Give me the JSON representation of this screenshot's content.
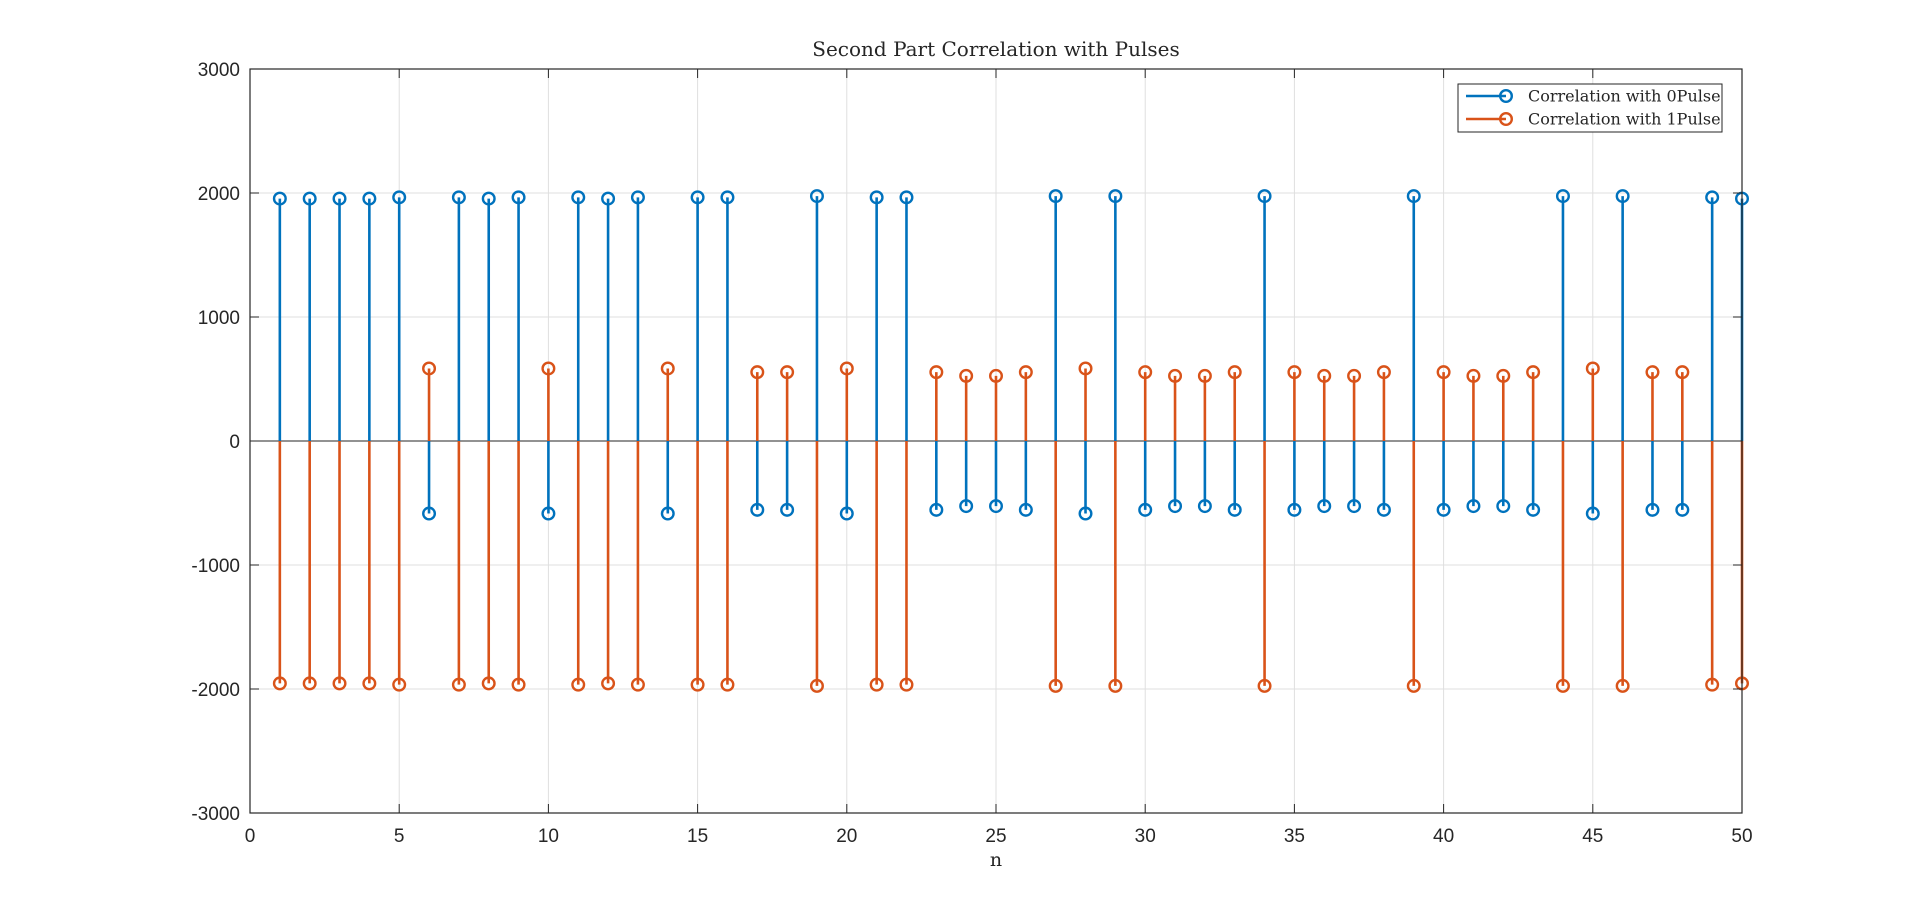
{
  "chart_data": {
    "type": "stem",
    "title": "Second Part Correlation with Pulses",
    "xlabel": "n",
    "ylabel": "",
    "xlim": [
      0,
      50
    ],
    "ylim": [
      -3000,
      3000
    ],
    "x_ticks": [
      0,
      5,
      10,
      15,
      20,
      25,
      30,
      35,
      40,
      45,
      50
    ],
    "y_ticks": [
      3000,
      2000,
      1000,
      0,
      -1000,
      -2000,
      -3000
    ],
    "grid": true,
    "legend_position": "top-right",
    "x": [
      1,
      2,
      3,
      4,
      5,
      6,
      7,
      8,
      9,
      10,
      11,
      12,
      13,
      14,
      15,
      16,
      17,
      18,
      19,
      20,
      21,
      22,
      23,
      24,
      25,
      26,
      27,
      28,
      29,
      30,
      31,
      32,
      33,
      34,
      35,
      36,
      37,
      38,
      39,
      40,
      41,
      42,
      43,
      44,
      45,
      46,
      47,
      48,
      49,
      50
    ],
    "series": [
      {
        "name": "Correlation with 0Pulse",
        "color": "#0072bd",
        "values": [
          1955,
          1955,
          1955,
          1955,
          1965,
          -585,
          1965,
          1955,
          1965,
          -585,
          1965,
          1955,
          1965,
          -585,
          1965,
          1965,
          -555,
          -555,
          1975,
          -585,
          1965,
          1965,
          -555,
          -525,
          -525,
          -555,
          1975,
          -585,
          1975,
          -555,
          -525,
          -525,
          -555,
          1975,
          -555,
          -525,
          -525,
          -555,
          1975,
          -555,
          -525,
          -525,
          -555,
          1975,
          -585,
          1975,
          -555,
          -555,
          1965,
          1955
        ]
      },
      {
        "name": "Correlation with 1Pulse",
        "color": "#d95319",
        "values": [
          -1955,
          -1955,
          -1955,
          -1955,
          -1965,
          585,
          -1965,
          -1955,
          -1965,
          585,
          -1965,
          -1955,
          -1965,
          585,
          -1965,
          -1965,
          555,
          555,
          -1975,
          585,
          -1965,
          -1965,
          555,
          525,
          525,
          555,
          -1975,
          585,
          -1975,
          555,
          525,
          525,
          555,
          -1975,
          555,
          525,
          525,
          555,
          -1975,
          555,
          525,
          525,
          555,
          -1975,
          585,
          -1975,
          555,
          555,
          -1965,
          -1955
        ]
      }
    ]
  }
}
